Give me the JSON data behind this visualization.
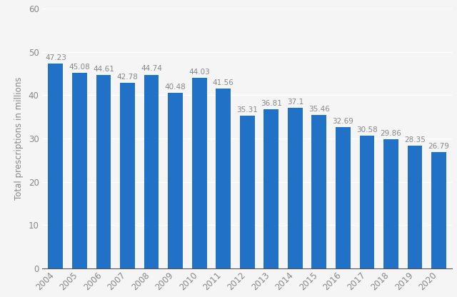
{
  "years": [
    2004,
    2005,
    2006,
    2007,
    2008,
    2009,
    2010,
    2011,
    2012,
    2013,
    2014,
    2015,
    2016,
    2017,
    2018,
    2019,
    2020
  ],
  "values": [
    47.23,
    45.08,
    44.61,
    42.78,
    44.74,
    40.48,
    44.03,
    41.56,
    35.31,
    36.81,
    37.1,
    35.46,
    32.69,
    30.58,
    29.86,
    28.35,
    26.79
  ],
  "bar_color": "#2171c7",
  "ylabel": "Total prescriptions in millions",
  "ylim": [
    0,
    60
  ],
  "yticks": [
    0,
    10,
    20,
    30,
    40,
    50,
    60
  ],
  "background_color": "#f5f5f5",
  "plot_bg_color": "#f5f5f5",
  "grid_color": "#ffffff",
  "label_color": "#888888",
  "tick_color": "#888888",
  "spine_color": "#aaaaaa",
  "bottom_spine_color": "#555555",
  "label_fontsize": 8.5,
  "bar_label_fontsize": 7.5,
  "bar_width": 0.62
}
